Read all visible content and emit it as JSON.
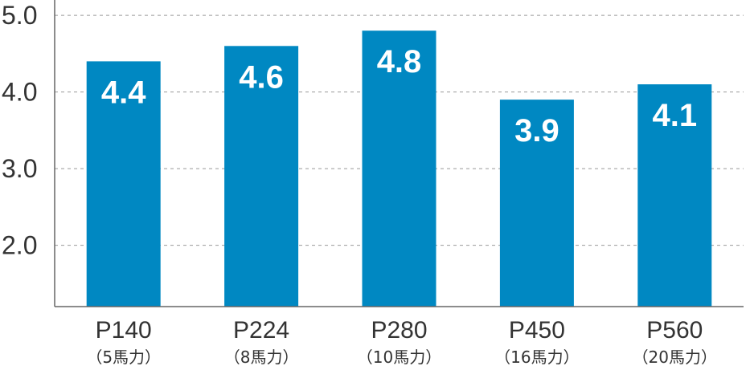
{
  "chart_data": {
    "type": "bar",
    "categories": [
      "P140",
      "P224",
      "P280",
      "P450",
      "P560"
    ],
    "category_sublabels": [
      "（5馬力）",
      "（8馬力）",
      "（10馬力）",
      "（16馬力）",
      "（20馬力）"
    ],
    "values": [
      4.4,
      4.6,
      4.8,
      3.9,
      4.1
    ],
    "value_labels": [
      "4.4",
      "4.6",
      "4.8",
      "3.9",
      "4.1"
    ],
    "yticks": [
      2.0,
      3.0,
      4.0,
      5.0
    ],
    "ytick_labels": [
      "2.0",
      "3.0",
      "4.0",
      "5.0"
    ],
    "ylim": [
      1.2,
      5.2
    ],
    "grid": true,
    "title": "",
    "xlabel": "",
    "ylabel": ""
  },
  "colors": {
    "bar": "#0088C2",
    "grid": "#999999",
    "axis": "#666666"
  }
}
